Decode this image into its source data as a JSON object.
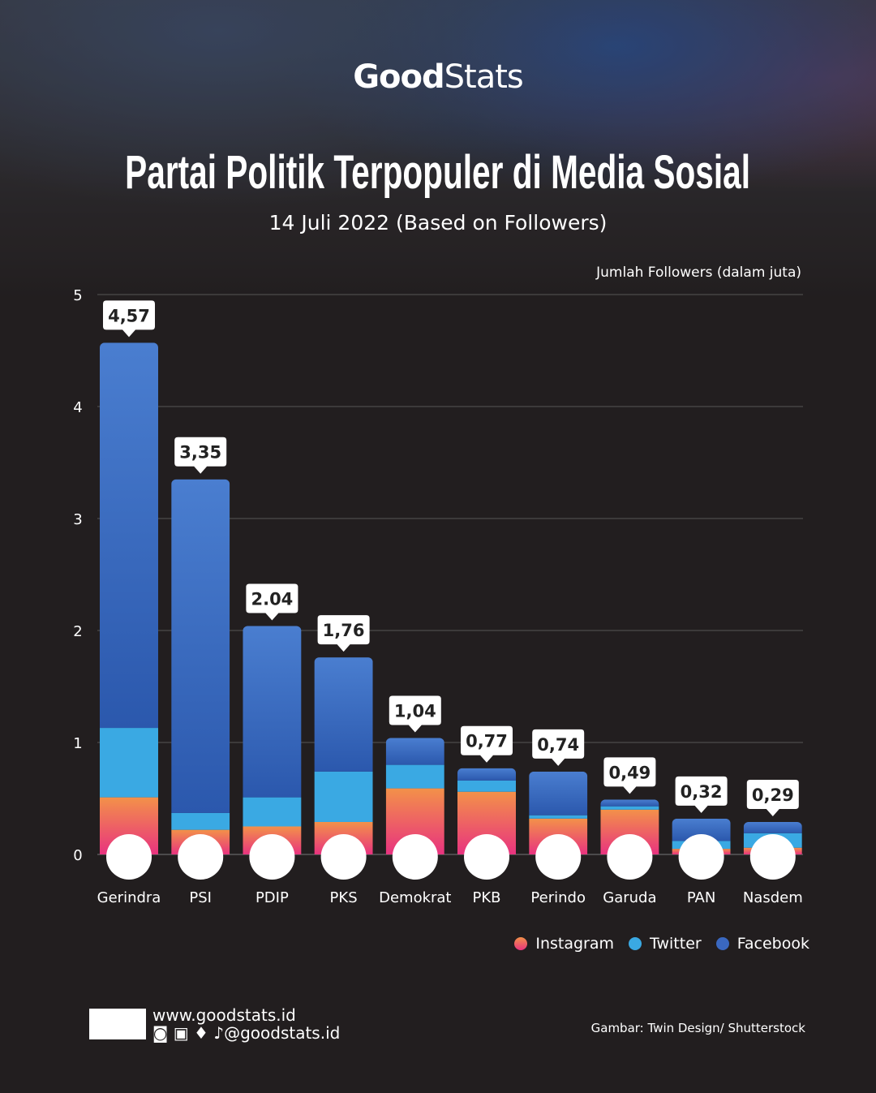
{
  "brand": {
    "logo_bold": "Good",
    "logo_light": "Stats"
  },
  "title": "Partai Politik Terpopuler di Media Sosial",
  "subtitle": "14 Juli 2022 (Based on Followers)",
  "footer": {
    "website": "www.goodstats.id",
    "handle": "@goodstats.id",
    "credit": "Gambar: Twin Design/ Shutterstock"
  },
  "chart_data": {
    "type": "bar",
    "stacked": true,
    "title": "Partai Politik Terpopuler di Media Sosial",
    "subtitle": "14 Juli 2022 (Based on Followers)",
    "ylabel": "Jumlah Followers (dalam juta)",
    "ylim": [
      0,
      5
    ],
    "yticks": [
      "0",
      "1",
      "2",
      "3",
      "4",
      "5"
    ],
    "grid": true,
    "legend": "bottom-right",
    "categories": [
      "Gerindra",
      "PSI",
      "PDIP",
      "PKS",
      "Demokrat",
      "PKB",
      "Perindo",
      "Garuda",
      "PAN",
      "Nasdem"
    ],
    "totals_labels": [
      "4,57",
      "3,35",
      "2.04",
      "1,76",
      "1,04",
      "0,77",
      "0,74",
      "0,49",
      "0,32",
      "0,29"
    ],
    "totals": [
      4.57,
      3.35,
      2.04,
      1.76,
      1.04,
      0.77,
      0.74,
      0.49,
      0.32,
      0.29
    ],
    "series": [
      {
        "name": "Instagram",
        "color": "#ee4f7a",
        "values": [
          0.51,
          0.22,
          0.25,
          0.29,
          0.59,
          0.56,
          0.32,
          0.4,
          0.05,
          0.06
        ]
      },
      {
        "name": "Twitter",
        "color": "#3aa9e3",
        "values": [
          0.62,
          0.15,
          0.26,
          0.45,
          0.21,
          0.1,
          0.03,
          0.03,
          0.07,
          0.13
        ]
      },
      {
        "name": "Facebook",
        "color": "#3a68c0",
        "values": [
          3.44,
          2.98,
          1.53,
          1.02,
          0.24,
          0.11,
          0.39,
          0.06,
          0.2,
          0.1
        ]
      }
    ]
  }
}
